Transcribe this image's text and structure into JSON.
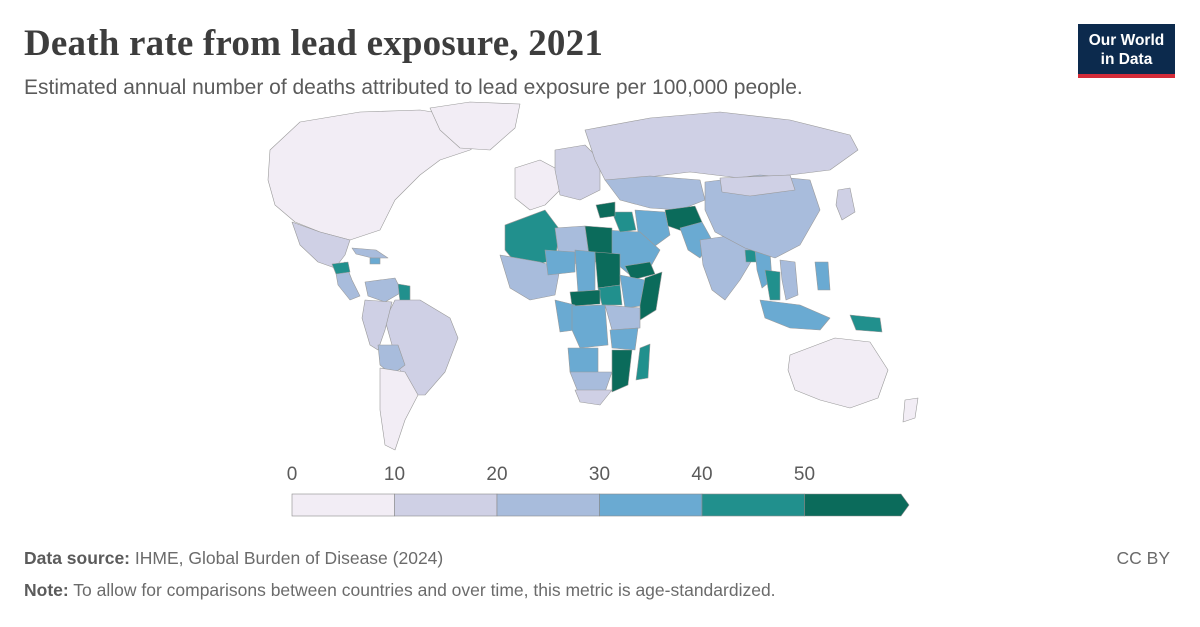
{
  "header": {
    "title": "Death rate from lead exposure, 2021",
    "subtitle": "Estimated annual number of deaths attributed to lead exposure per 100,000 people."
  },
  "logo": {
    "line1": "Our World",
    "line2": "in Data"
  },
  "legend": {
    "ticks": [
      "0",
      "10",
      "20",
      "30",
      "40",
      "50"
    ],
    "bins": [
      {
        "from": 0,
        "to": 10,
        "color": "#f2edf5"
      },
      {
        "from": 10,
        "to": 20,
        "color": "#cfd0e5"
      },
      {
        "from": 20,
        "to": 30,
        "color": "#a8bcdc"
      },
      {
        "from": 30,
        "to": 40,
        "color": "#6aaad2"
      },
      {
        "from": 40,
        "to": 50,
        "color": "#21908d"
      },
      {
        "from": 50,
        "to": null,
        "color": "#0b6b5b"
      }
    ]
  },
  "regions": [
    {
      "name": "North America",
      "bin": 0
    },
    {
      "name": "Greenland",
      "bin": 0
    },
    {
      "name": "Mexico",
      "bin": 1
    },
    {
      "name": "Central America",
      "bin": 2
    },
    {
      "name": "Honduras",
      "bin": 4
    },
    {
      "name": "Caribbean",
      "bin": 2
    },
    {
      "name": "Haiti",
      "bin": 3
    },
    {
      "name": "Venezuela",
      "bin": 2
    },
    {
      "name": "Guyana",
      "bin": 4
    },
    {
      "name": "Brazil",
      "bin": 1
    },
    {
      "name": "Andean South America",
      "bin": 1
    },
    {
      "name": "Bolivia",
      "bin": 2
    },
    {
      "name": "Southern Cone",
      "bin": 0
    },
    {
      "name": "Western Europe",
      "bin": 0
    },
    {
      "name": "Eastern Europe",
      "bin": 1
    },
    {
      "name": "Russia",
      "bin": 1
    },
    {
      "name": "Central Asia",
      "bin": 2
    },
    {
      "name": "Afghanistan",
      "bin": 5
    },
    {
      "name": "Pakistan",
      "bin": 3
    },
    {
      "name": "Iran",
      "bin": 3
    },
    {
      "name": "Arabian Peninsula",
      "bin": 3
    },
    {
      "name": "Yemen",
      "bin": 5
    },
    {
      "name": "Iraq",
      "bin": 4
    },
    {
      "name": "Syria",
      "bin": 5
    },
    {
      "name": "India",
      "bin": 2
    },
    {
      "name": "Bangladesh",
      "bin": 4
    },
    {
      "name": "Myanmar",
      "bin": 3
    },
    {
      "name": "Thailand",
      "bin": 4
    },
    {
      "name": "Vietnam",
      "bin": 2
    },
    {
      "name": "China",
      "bin": 2
    },
    {
      "name": "Mongolia",
      "bin": 1
    },
    {
      "name": "Japan",
      "bin": 1
    },
    {
      "name": "Indonesia",
      "bin": 3
    },
    {
      "name": "Philippines",
      "bin": 3
    },
    {
      "name": "Papua New Guinea",
      "bin": 4
    },
    {
      "name": "Australia",
      "bin": 0
    },
    {
      "name": "New Zealand",
      "bin": 0
    },
    {
      "name": "North Africa West",
      "bin": 4
    },
    {
      "name": "Libya",
      "bin": 2
    },
    {
      "name": "Egypt",
      "bin": 5
    },
    {
      "name": "West Africa",
      "bin": 2
    },
    {
      "name": "Niger",
      "bin": 3
    },
    {
      "name": "Chad",
      "bin": 3
    },
    {
      "name": "Sudan",
      "bin": 5
    },
    {
      "name": "South Sudan",
      "bin": 4
    },
    {
      "name": "Ethiopia",
      "bin": 3
    },
    {
      "name": "Somalia",
      "bin": 5
    },
    {
      "name": "Central African Republic",
      "bin": 5
    },
    {
      "name": "Central Africa",
      "bin": 3
    },
    {
      "name": "DR Congo",
      "bin": 3
    },
    {
      "name": "East Africa",
      "bin": 2
    },
    {
      "name": "Tanzania",
      "bin": 3
    },
    {
      "name": "Mozambique",
      "bin": 5
    },
    {
      "name": "Madagascar",
      "bin": 4
    },
    {
      "name": "Angola",
      "bin": 3
    },
    {
      "name": "Southern Africa",
      "bin": 2
    },
    {
      "name": "South Africa",
      "bin": 1
    }
  ],
  "footer": {
    "source_label": "Data source:",
    "source_text": "IHME, Global Burden of Disease (2024)",
    "note_label": "Note:",
    "note_text": "To allow for comparisons between countries and over time, this metric is age-standardized.",
    "license": "CC BY"
  }
}
